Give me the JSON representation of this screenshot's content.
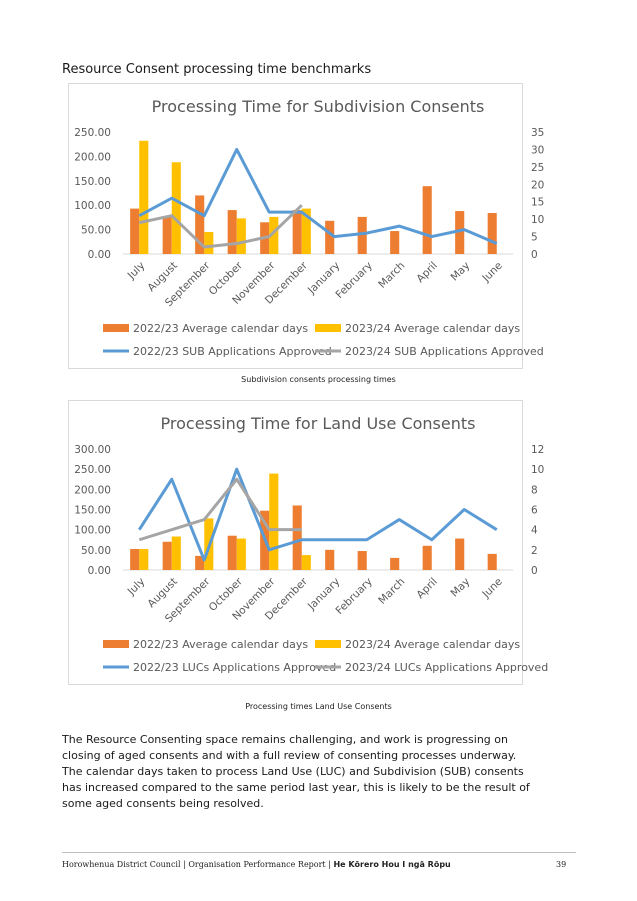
{
  "section_heading": "Resource Consent processing time benchmarks",
  "charts": [
    {
      "id": "subdivision",
      "caption": "Subdivision consents processing times",
      "chart_data": {
        "type": "bar",
        "title": "Processing Time for Subdivision Consents",
        "categories": [
          "July",
          "August",
          "September",
          "October",
          "November",
          "December",
          "January",
          "February",
          "March",
          "April",
          "May",
          "June"
        ],
        "y_ticks": [
          "250.00",
          "200.00",
          "150.00",
          "100.00",
          "50.00",
          "0.00"
        ],
        "y2_ticks": [
          "35",
          "30",
          "25",
          "20",
          "15",
          "10",
          "5",
          "0"
        ],
        "ylim": [
          0,
          250
        ],
        "y2lim": [
          0,
          35
        ],
        "series": [
          {
            "name": "2022/23 Average calendar days",
            "kind": "bar",
            "axis": "left",
            "color": "#ed7d31",
            "values": [
              93,
              77,
              120,
              90,
              65,
              90,
              68,
              76,
              47,
              139,
              88,
              84
            ]
          },
          {
            "name": "2023/24 Average calendar days",
            "kind": "bar",
            "axis": "left",
            "color": "#ffc000",
            "values": [
              232,
              188,
              45,
              73,
              76,
              93,
              null,
              null,
              null,
              null,
              null,
              null
            ]
          },
          {
            "name": "2022/23 SUB Applications Approved",
            "kind": "line",
            "axis": "right",
            "color": "#5b9bd5",
            "values": [
              11,
              16,
              11,
              30,
              12,
              12,
              5,
              6,
              8,
              5,
              7,
              3
            ]
          },
          {
            "name": "2023/24 SUB Applications Approved",
            "kind": "line",
            "axis": "right",
            "color": "#a5a5a5",
            "values": [
              9,
              11,
              2,
              3,
              5,
              14,
              null,
              null,
              null,
              null,
              null,
              null
            ]
          }
        ]
      }
    },
    {
      "id": "landuse",
      "caption": "Processing times Land Use Consents",
      "chart_data": {
        "type": "bar",
        "title": "Processing Time for Land Use Consents",
        "categories": [
          "July",
          "August",
          "September",
          "October",
          "November",
          "December",
          "January",
          "February",
          "March",
          "April",
          "May",
          "June"
        ],
        "y_ticks": [
          "300.00",
          "250.00",
          "200.00",
          "150.00",
          "100.00",
          "50.00",
          "0.00"
        ],
        "y2_ticks": [
          "12",
          "10",
          "8",
          "6",
          "4",
          "2",
          "0"
        ],
        "ylim": [
          0,
          300
        ],
        "y2lim": [
          0,
          12
        ],
        "series": [
          {
            "name": "2022/23 Average calendar days",
            "kind": "bar",
            "axis": "left",
            "color": "#ed7d31",
            "values": [
              52,
              70,
              35,
              85,
              147,
              160,
              50,
              47,
              30,
              60,
              78,
              40
            ]
          },
          {
            "name": "2023/24 Average calendar days",
            "kind": "bar",
            "axis": "left",
            "color": "#ffc000",
            "values": [
              52,
              83,
              128,
              78,
              239,
              37,
              null,
              null,
              null,
              null,
              null,
              null
            ]
          },
          {
            "name": "2022/23 LUCs Applications Approved",
            "kind": "line",
            "axis": "right",
            "color": "#5b9bd5",
            "values": [
              4,
              9,
              1,
              10,
              2,
              3,
              3,
              3,
              5,
              3,
              6,
              4
            ]
          },
          {
            "name": "2023/24 LUCs Applications Approved",
            "kind": "line",
            "axis": "right",
            "color": "#a5a5a5",
            "values": [
              3,
              4,
              5,
              9,
              4,
              4,
              null,
              null,
              null,
              null,
              null,
              null
            ]
          }
        ]
      }
    }
  ],
  "paragraphs": [
    "The Resource Consenting space remains challenging, and work is progressing on closing of aged consents and with a full review of consenting processes underway.",
    "The calendar days taken to process Land Use (LUC) and Subdivision (SUB) consents has increased compared to the same period last year, this is likely to be the result of some aged consents being resolved."
  ],
  "footer": {
    "left": "Horowhenua District Council | Organisation Performance Report | ",
    "bold": "He Kōrero Hou I ngā Rōpu",
    "page_number": "39"
  }
}
